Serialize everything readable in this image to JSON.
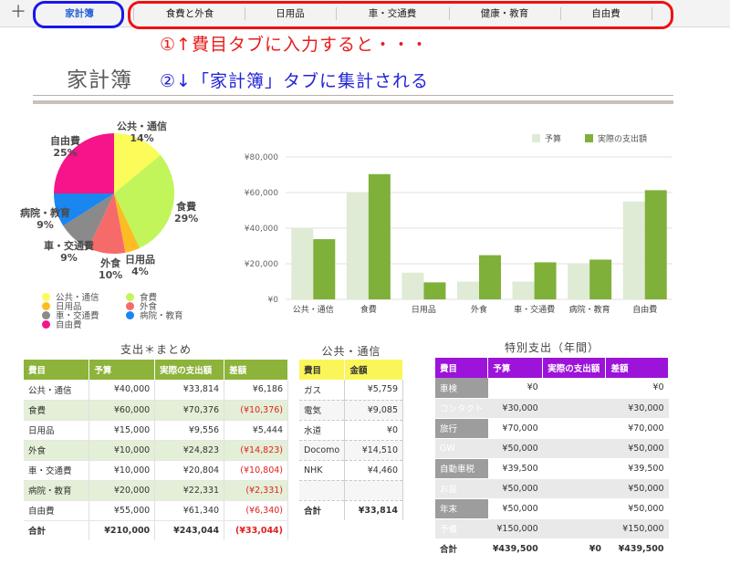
{
  "tabs": {
    "add_label": "＋",
    "items": [
      "家計簿",
      "食費と外食",
      "日用品",
      "車・交通費",
      "健康・教育",
      "自由費"
    ],
    "active_index": 0
  },
  "annotations": {
    "step1": "①↑費目タブに入力すると・・・",
    "step2": "②↓「家計簿」タブに集計される"
  },
  "doc_title": "家計簿",
  "chart_data": [
    {
      "type": "pie",
      "slices": [
        {
          "label": "公共・通信",
          "value": 14,
          "pct_label": "14%",
          "color": "#fbfb59"
        },
        {
          "label": "食費",
          "value": 29,
          "pct_label": "29%",
          "color": "#c2f55a"
        },
        {
          "label": "日用品",
          "value": 4,
          "pct_label": "4%",
          "color": "#fbbd23"
        },
        {
          "label": "外食",
          "value": 10,
          "pct_label": "10%",
          "color": "#f76a6a"
        },
        {
          "label": "車・交通費",
          "value": 9,
          "pct_label": "9%",
          "color": "#8a8a8a"
        },
        {
          "label": "病院・教育",
          "value": 9,
          "pct_label": "9%",
          "color": "#1a86f0"
        },
        {
          "label": "自由費",
          "value": 25,
          "pct_label": "25%",
          "color": "#f5148a"
        }
      ],
      "legend": [
        "公共・通信",
        "食費",
        "日用品",
        "外食",
        "車・交通費",
        "病院・教育",
        "自由費"
      ]
    },
    {
      "type": "bar",
      "categories": [
        "公共・通信",
        "食費",
        "日用品",
        "外食",
        "車・交通費",
        "病院・教育",
        "自由費"
      ],
      "series": [
        {
          "name": "予算",
          "values": [
            40000,
            60000,
            15000,
            10000,
            10000,
            20000,
            55000
          ],
          "color": "#dfebd4"
        },
        {
          "name": "実際の支出額",
          "values": [
            33814,
            70376,
            9556,
            24823,
            20804,
            22331,
            61340
          ],
          "color": "#7fb03a"
        }
      ],
      "ylim": [
        0,
        80000
      ],
      "yticks": [
        "¥0",
        "¥20,000",
        "¥40,000",
        "¥60,000",
        "¥80,000"
      ],
      "ytick_values": [
        0,
        20000,
        40000,
        60000,
        80000
      ],
      "legend_position": "top-right",
      "grid": true
    }
  ],
  "summary": {
    "title": "支出＊まとめ",
    "headers": [
      "費目",
      "予算",
      "実際の支出額",
      "差額"
    ],
    "rows": [
      {
        "cat": "公共・通信",
        "budget": "¥40,000",
        "actual": "¥33,814",
        "diff": "¥6,186",
        "neg": false
      },
      {
        "cat": "食費",
        "budget": "¥60,000",
        "actual": "¥70,376",
        "diff": "(¥10,376)",
        "neg": true
      },
      {
        "cat": "日用品",
        "budget": "¥15,000",
        "actual": "¥9,556",
        "diff": "¥5,444",
        "neg": false
      },
      {
        "cat": "外食",
        "budget": "¥10,000",
        "actual": "¥24,823",
        "diff": "(¥14,823)",
        "neg": true
      },
      {
        "cat": "車・交通費",
        "budget": "¥10,000",
        "actual": "¥20,804",
        "diff": "(¥10,804)",
        "neg": true
      },
      {
        "cat": "病院・教育",
        "budget": "¥20,000",
        "actual": "¥22,331",
        "diff": "(¥2,331)",
        "neg": true
      },
      {
        "cat": "自由費",
        "budget": "¥55,000",
        "actual": "¥61,340",
        "diff": "(¥6,340)",
        "neg": true
      }
    ],
    "total": {
      "cat": "合計",
      "budget": "¥210,000",
      "actual": "¥243,044",
      "diff": "(¥33,044)"
    }
  },
  "communication": {
    "title": "公共・通信",
    "headers": [
      "費目",
      "金額"
    ],
    "rows": [
      {
        "cat": "ガス",
        "amount": "¥5,759"
      },
      {
        "cat": "電気",
        "amount": "¥9,085"
      },
      {
        "cat": "水道",
        "amount": "¥0"
      },
      {
        "cat": "Docomo",
        "amount": "¥14,510"
      },
      {
        "cat": "NHK",
        "amount": "¥4,460"
      },
      {
        "cat": "",
        "amount": ""
      }
    ],
    "total": {
      "cat": "合計",
      "amount": "¥33,814"
    }
  },
  "special": {
    "title": "特別支出（年間）",
    "headers": [
      "費目",
      "予算",
      "実際の支出額",
      "差額"
    ],
    "rows": [
      {
        "cat": "車検",
        "budget": "¥0",
        "actual": "",
        "diff": "¥0"
      },
      {
        "cat": "コンタクト",
        "budget": "¥30,000",
        "actual": "",
        "diff": "¥30,000"
      },
      {
        "cat": "旅行",
        "budget": "¥70,000",
        "actual": "",
        "diff": "¥70,000"
      },
      {
        "cat": "GW",
        "budget": "¥50,000",
        "actual": "",
        "diff": "¥50,000"
      },
      {
        "cat": "自動車税",
        "budget": "¥39,500",
        "actual": "",
        "diff": "¥39,500"
      },
      {
        "cat": "お盆",
        "budget": "¥50,000",
        "actual": "",
        "diff": "¥50,000"
      },
      {
        "cat": "年末",
        "budget": "¥50,000",
        "actual": "",
        "diff": "¥50,000"
      },
      {
        "cat": "予備",
        "budget": "¥150,000",
        "actual": "",
        "diff": "¥150,000"
      }
    ],
    "total": {
      "cat": "合計",
      "budget": "¥439,500",
      "actual": "¥0",
      "diff": "¥439,500"
    }
  }
}
